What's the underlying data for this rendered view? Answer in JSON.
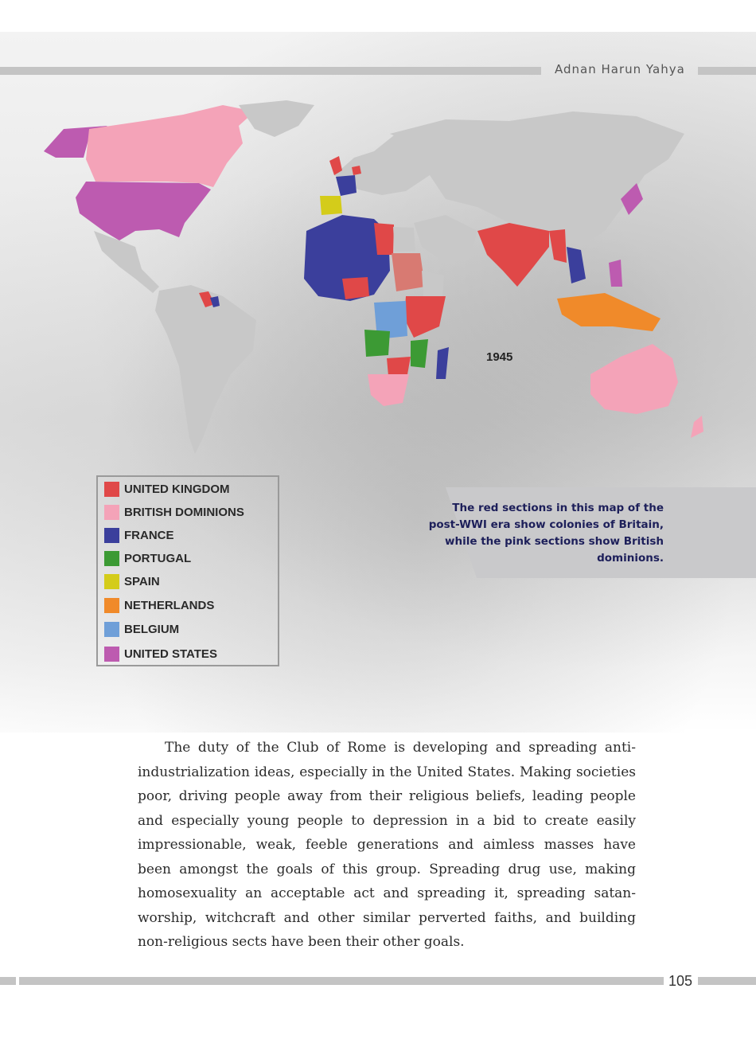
{
  "header": {
    "author": "Adnan Harun Yahya"
  },
  "map": {
    "year": "1945",
    "colors": {
      "land": "#c8c8c8",
      "united_kingdom": "#e04848",
      "british_dominions": "#f4a3b8",
      "france": "#3b3f9c",
      "portugal": "#3c9a34",
      "spain": "#d4cc1a",
      "netherlands": "#f08a2a",
      "belgium": "#6f9fd8",
      "united_states": "#bd5bb0"
    },
    "legend": [
      {
        "label": "UNITED KINGDOM",
        "color": "#e04848"
      },
      {
        "label": "BRITISH DOMINIONS",
        "color": "#f4a3b8"
      },
      {
        "label": "FRANCE",
        "color": "#3b3f9c"
      },
      {
        "label": "PORTUGAL",
        "color": "#3c9a34"
      },
      {
        "label": "SPAIN",
        "color": "#d4cc1a"
      },
      {
        "label": "NETHERLANDS",
        "color": "#f08a2a"
      },
      {
        "label": "BELGIUM",
        "color": "#6f9fd8"
      },
      {
        "label": "UNITED STATES",
        "color": "#bd5bb0"
      }
    ]
  },
  "caption": "The red sections in this map of the post-WWI era show colonies of Britain, while the pink sections show British dominions.",
  "body": "The duty of the Club of Rome is developing and spreading anti-industrialization ideas, especially in the United States. Making societies poor, driving people away from their religious beliefs, leading people and especially young people to depression in a bid to create easily impressionable, weak, feeble generations and aimless masses have been amongst the goals of this group. Spreading drug use, making homosexuality an acceptable act and spreading it, spreading satan-worship, witchcraft and other similar perverted faiths, and building non-religious sects have been their other goals.",
  "page_number": "105"
}
